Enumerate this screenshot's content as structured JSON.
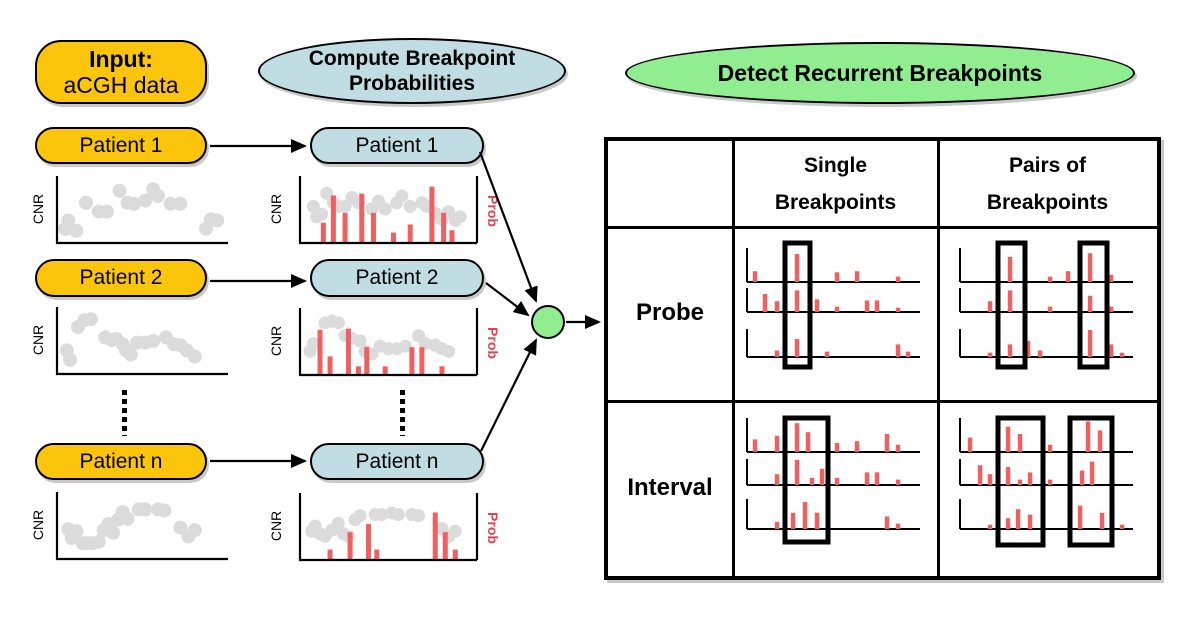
{
  "labels": {
    "cnr": "CNR",
    "prob": "Prob"
  },
  "col1": {
    "title_line1": "Input:",
    "title_line2": "aCGH data",
    "patients": [
      "Patient 1",
      "Patient 2",
      "Patient n"
    ]
  },
  "col2": {
    "title_line1": "Compute Breakpoint",
    "title_line2": "Probabilities",
    "patients": [
      "Patient 1",
      "Patient 2",
      "Patient n"
    ]
  },
  "detect_label": "Detect Recurrent Breakpoints",
  "table": {
    "col_headers": [
      {
        "line1": "Single",
        "line2": "Breakpoints"
      },
      {
        "line1": "Pairs of",
        "line2": "Breakpoints"
      }
    ],
    "row_headers": [
      "Probe",
      "Interval"
    ]
  },
  "colors": {
    "gold": "#FAC50A",
    "blue": "#BFDDE3",
    "green": "#90EE90",
    "bar_red": "#F06060",
    "label_red": "#E5424D",
    "dot_gray": "#DBDBDB"
  },
  "charts": {
    "scatter": [
      {
        "dots": [
          [
            0.04,
            0.28
          ],
          [
            0.02,
            0.12
          ],
          [
            0.09,
            0.08
          ],
          [
            0.15,
            0.62
          ],
          [
            0.23,
            0.45
          ],
          [
            0.28,
            0.45
          ],
          [
            0.36,
            0.85
          ],
          [
            0.41,
            0.62
          ],
          [
            0.45,
            0.6
          ],
          [
            0.52,
            0.66
          ],
          [
            0.57,
            0.88
          ],
          [
            0.6,
            0.75
          ],
          [
            0.68,
            0.6
          ],
          [
            0.74,
            0.6
          ],
          [
            0.93,
            0.3
          ],
          [
            0.9,
            0.12
          ],
          [
            0.97,
            0.28
          ]
        ]
      },
      {
        "dots": [
          [
            0.03,
            0.3
          ],
          [
            0.05,
            0.12
          ],
          [
            0.1,
            0.75
          ],
          [
            0.14,
            0.88
          ],
          [
            0.18,
            0.9
          ],
          [
            0.27,
            0.55
          ],
          [
            0.31,
            0.5
          ],
          [
            0.34,
            0.52
          ],
          [
            0.38,
            0.42
          ],
          [
            0.4,
            0.3
          ],
          [
            0.43,
            0.22
          ],
          [
            0.47,
            0.45
          ],
          [
            0.52,
            0.45
          ],
          [
            0.57,
            0.48
          ],
          [
            0.65,
            0.55
          ],
          [
            0.7,
            0.42
          ],
          [
            0.74,
            0.4
          ],
          [
            0.78,
            0.3
          ],
          [
            0.83,
            0.18
          ]
        ]
      },
      {
        "dots": [
          [
            0.04,
            0.42
          ],
          [
            0.06,
            0.25
          ],
          [
            0.09,
            0.38
          ],
          [
            0.13,
            0.15
          ],
          [
            0.16,
            0.15
          ],
          [
            0.19,
            0.15
          ],
          [
            0.23,
            0.18
          ],
          [
            0.26,
            0.4
          ],
          [
            0.29,
            0.52
          ],
          [
            0.32,
            0.35
          ],
          [
            0.35,
            0.6
          ],
          [
            0.38,
            0.75
          ],
          [
            0.41,
            0.62
          ],
          [
            0.48,
            0.8
          ],
          [
            0.52,
            0.8
          ],
          [
            0.6,
            0.8
          ],
          [
            0.64,
            0.78
          ],
          [
            0.74,
            0.45
          ],
          [
            0.79,
            0.28
          ],
          [
            0.83,
            0.4
          ]
        ]
      }
    ],
    "prob": [
      {
        "dots": [
          [
            0.05,
            0.55
          ],
          [
            0.07,
            0.35
          ],
          [
            0.1,
            0.4
          ],
          [
            0.13,
            0.8
          ],
          [
            0.17,
            0.62
          ],
          [
            0.2,
            0.55
          ],
          [
            0.24,
            0.55
          ],
          [
            0.28,
            0.72
          ],
          [
            0.32,
            0.62
          ],
          [
            0.4,
            0.5
          ],
          [
            0.44,
            0.65
          ],
          [
            0.48,
            0.5
          ],
          [
            0.55,
            0.62
          ],
          [
            0.58,
            0.75
          ],
          [
            0.63,
            0.55
          ],
          [
            0.7,
            0.62
          ],
          [
            0.73,
            0.55
          ],
          [
            0.78,
            0.42
          ],
          [
            0.82,
            0.3
          ],
          [
            0.86,
            0.45
          ],
          [
            0.9,
            0.28
          ],
          [
            0.93,
            0.35
          ]
        ],
        "bars": [
          [
            0.11,
            0.35
          ],
          [
            0.17,
            0.82
          ],
          [
            0.24,
            0.52
          ],
          [
            0.34,
            0.85
          ],
          [
            0.41,
            0.52
          ],
          [
            0.53,
            0.18
          ],
          [
            0.63,
            0.32
          ],
          [
            0.76,
            0.97
          ],
          [
            0.83,
            0.52
          ],
          [
            0.88,
            0.22
          ]
        ]
      },
      {
        "dots": [
          [
            0.03,
            0.3
          ],
          [
            0.05,
            0.45
          ],
          [
            0.12,
            0.85
          ],
          [
            0.16,
            0.88
          ],
          [
            0.2,
            0.85
          ],
          [
            0.24,
            0.6
          ],
          [
            0.28,
            0.55
          ],
          [
            0.33,
            0.5
          ],
          [
            0.36,
            0.3
          ],
          [
            0.4,
            0.25
          ],
          [
            0.45,
            0.4
          ],
          [
            0.5,
            0.35
          ],
          [
            0.55,
            0.35
          ],
          [
            0.6,
            0.4
          ],
          [
            0.68,
            0.6
          ],
          [
            0.72,
            0.45
          ],
          [
            0.78,
            0.42
          ],
          [
            0.82,
            0.35
          ],
          [
            0.86,
            0.3
          ]
        ],
        "bars": [
          [
            0.09,
            0.78
          ],
          [
            0.15,
            0.32
          ],
          [
            0.26,
            0.8
          ],
          [
            0.32,
            0.15
          ],
          [
            0.37,
            0.48
          ],
          [
            0.48,
            0.15
          ],
          [
            0.64,
            0.48
          ],
          [
            0.7,
            0.48
          ],
          [
            0.82,
            0.15
          ]
        ]
      },
      {
        "dots": [
          [
            0.04,
            0.4
          ],
          [
            0.06,
            0.5
          ],
          [
            0.09,
            0.35
          ],
          [
            0.12,
            0.3
          ],
          [
            0.16,
            0.42
          ],
          [
            0.2,
            0.55
          ],
          [
            0.23,
            0.35
          ],
          [
            0.26,
            0.3
          ],
          [
            0.3,
            0.62
          ],
          [
            0.33,
            0.7
          ],
          [
            0.42,
            0.72
          ],
          [
            0.46,
            0.72
          ],
          [
            0.52,
            0.75
          ],
          [
            0.56,
            0.72
          ],
          [
            0.64,
            0.72
          ],
          [
            0.68,
            0.7
          ],
          [
            0.82,
            0.45
          ],
          [
            0.86,
            0.3
          ],
          [
            0.9,
            0.4
          ]
        ],
        "bars": [
          [
            0.15,
            0.18
          ],
          [
            0.27,
            0.48
          ],
          [
            0.38,
            0.62
          ],
          [
            0.43,
            0.18
          ],
          [
            0.78,
            0.82
          ],
          [
            0.84,
            0.48
          ],
          [
            0.9,
            0.18
          ]
        ]
      }
    ],
    "cells": {
      "probe_single": {
        "rows": [
          [
            [
              21,
              0.3
            ],
            [
              63,
              0.78
            ],
            [
              103,
              0.27
            ],
            [
              123,
              0.3
            ],
            [
              164,
              0.15
            ]
          ],
          [
            [
              31,
              0.5
            ],
            [
              43,
              0.3
            ],
            [
              63,
              0.6
            ],
            [
              83,
              0.35
            ],
            [
              103,
              0.15
            ],
            [
              133,
              0.32
            ],
            [
              143,
              0.32
            ],
            [
              164,
              0.12
            ]
          ],
          [
            [
              43,
              0.18
            ],
            [
              63,
              0.5
            ],
            [
              93,
              0.15
            ],
            [
              164,
              0.35
            ],
            [
              174,
              0.15
            ]
          ]
        ],
        "boxes": [
          [
            51,
            25
          ]
        ]
      },
      "probe_pairs": {
        "rows": [
          [
            [
              71,
              0.7
            ],
            [
              111,
              0.15
            ],
            [
              129,
              0.3
            ],
            [
              151,
              0.8
            ],
            [
              172,
              0.2
            ]
          ],
          [
            [
              51,
              0.3
            ],
            [
              71,
              0.6
            ],
            [
              111,
              0.15
            ],
            [
              151,
              0.45
            ],
            [
              172,
              0.15
            ]
          ],
          [
            [
              51,
              0.12
            ],
            [
              71,
              0.35
            ],
            [
              89,
              0.45
            ],
            [
              101,
              0.18
            ],
            [
              151,
              0.75
            ],
            [
              172,
              0.35
            ],
            [
              183,
              0.12
            ]
          ]
        ],
        "boxes": [
          [
            59,
            27
          ],
          [
            141,
            27
          ]
        ]
      },
      "interval_single": {
        "rows": [
          [
            [
              21,
              0.35
            ],
            [
              43,
              0.45
            ],
            [
              63,
              0.8
            ],
            [
              74,
              0.55
            ],
            [
              103,
              0.25
            ],
            [
              123,
              0.3
            ],
            [
              153,
              0.5
            ],
            [
              164,
              0.2
            ]
          ],
          [
            [
              43,
              0.3
            ],
            [
              63,
              0.7
            ],
            [
              78,
              0.2
            ],
            [
              88,
              0.45
            ],
            [
              103,
              0.2
            ],
            [
              133,
              0.35
            ],
            [
              143,
              0.35
            ],
            [
              164,
              0.15
            ]
          ],
          [
            [
              43,
              0.2
            ],
            [
              59,
              0.45
            ],
            [
              71,
              0.75
            ],
            [
              83,
              0.45
            ],
            [
              153,
              0.35
            ],
            [
              164,
              0.15
            ]
          ]
        ],
        "boxes": [
          [
            51,
            43
          ]
        ]
      },
      "interval_pairs": {
        "rows": [
          [
            [
              31,
              0.4
            ],
            [
              69,
              0.7
            ],
            [
              81,
              0.5
            ],
            [
              111,
              0.2
            ],
            [
              149,
              0.85
            ],
            [
              161,
              0.6
            ]
          ],
          [
            [
              41,
              0.55
            ],
            [
              51,
              0.3
            ],
            [
              69,
              0.5
            ],
            [
              81,
              0.15
            ],
            [
              91,
              0.35
            ],
            [
              111,
              0.15
            ],
            [
              143,
              0.4
            ],
            [
              153,
              0.65
            ]
          ],
          [
            [
              51,
              0.12
            ],
            [
              69,
              0.3
            ],
            [
              79,
              0.55
            ],
            [
              91,
              0.4
            ],
            [
              141,
              0.65
            ],
            [
              163,
              0.45
            ],
            [
              183,
              0.12
            ]
          ]
        ],
        "boxes": [
          [
            59,
            45
          ],
          [
            131,
            42
          ]
        ]
      }
    }
  }
}
